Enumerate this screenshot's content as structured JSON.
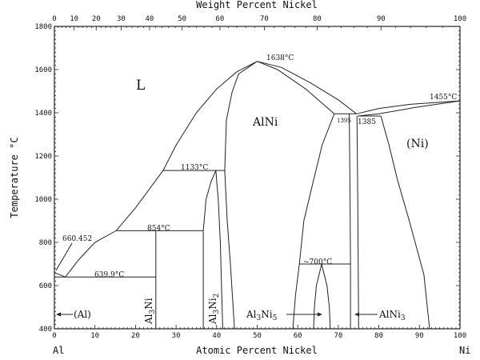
{
  "chart_data": {
    "type": "phase-diagram",
    "system": [
      "Al",
      "Ni"
    ],
    "xlabel": "Atomic Percent Nickel",
    "x2label": "Weight Percent Nickel",
    "ylabel": "Temperature °C",
    "xlim": [
      0,
      100
    ],
    "ylim": [
      400,
      1800
    ],
    "x_ticks": [
      0,
      10,
      20,
      30,
      40,
      50,
      60,
      70,
      80,
      90,
      100
    ],
    "x2_ticks": [
      0,
      10,
      20,
      30,
      40,
      50,
      60,
      70,
      80,
      90,
      100
    ],
    "y_ticks": [
      400,
      600,
      800,
      1000,
      1200,
      1400,
      1600,
      1800
    ],
    "left_element": "Al",
    "right_element": "Ni",
    "boundaries": [
      {
        "name": "liquidus-al-rich",
        "points": [
          [
            0,
            660
          ],
          [
            2.7,
            640
          ],
          [
            6,
            720
          ],
          [
            10,
            800
          ],
          [
            15.2,
            854
          ],
          [
            20,
            960
          ],
          [
            26.8,
            1133
          ],
          [
            30,
            1250
          ],
          [
            35,
            1400
          ],
          [
            40,
            1510
          ],
          [
            45,
            1590
          ],
          [
            50,
            1638
          ]
        ]
      },
      {
        "name": "liquidus-ni-rich-of-alni",
        "points": [
          [
            50,
            1638
          ],
          [
            56,
            1610
          ],
          [
            63,
            1540
          ],
          [
            70,
            1460
          ],
          [
            74.5,
            1395
          ]
        ]
      },
      {
        "name": "alni-solidus-right",
        "points": [
          [
            50,
            1638
          ],
          [
            55,
            1600
          ],
          [
            62,
            1510
          ],
          [
            69,
            1395
          ]
        ]
      },
      {
        "name": "alni-left-boundary",
        "points": [
          [
            50,
            1638
          ],
          [
            45.4,
            1580
          ],
          [
            43.8,
            1496
          ],
          [
            42.4,
            1367
          ],
          [
            42,
            1133
          ],
          [
            42.6,
            900
          ],
          [
            43.4,
            700
          ],
          [
            44.4,
            400
          ]
        ]
      },
      {
        "name": "alni-right-boundary",
        "points": [
          [
            69,
            1395
          ],
          [
            66,
            1250
          ],
          [
            63.9,
            1089
          ],
          [
            61.5,
            900
          ],
          [
            60.4,
            700
          ],
          [
            59.4,
            550
          ],
          [
            58.8,
            400
          ]
        ]
      },
      {
        "name": "peritectic-1395",
        "points": [
          [
            69,
            1395
          ],
          [
            74.5,
            1395
          ]
        ]
      },
      {
        "name": "ni-liquidus",
        "points": [
          [
            74.5,
            1395
          ],
          [
            80,
            1420
          ],
          [
            88,
            1440
          ],
          [
            100,
            1455
          ]
        ]
      },
      {
        "name": "ni-solidus",
        "points": [
          [
            74.8,
            1385
          ],
          [
            80,
            1395
          ],
          [
            89,
            1425
          ],
          [
            100,
            1455
          ]
        ]
      },
      {
        "name": "eutectic-1385",
        "points": [
          [
            74.8,
            1385
          ],
          [
            80.5,
            1385
          ]
        ]
      },
      {
        "name": "ni-solvus",
        "points": [
          [
            80.5,
            1385
          ],
          [
            82.5,
            1250
          ],
          [
            84.6,
            1089
          ],
          [
            87.5,
            900
          ],
          [
            91.1,
            650
          ],
          [
            92.5,
            400
          ]
        ]
      },
      {
        "name": "eutectic-639.9",
        "points": [
          [
            0,
            640
          ],
          [
            25,
            640
          ]
        ]
      },
      {
        "name": "al-solidus",
        "points": [
          [
            0,
            660
          ],
          [
            0,
            400
          ]
        ]
      },
      {
        "name": "peritectic-854",
        "points": [
          [
            15.2,
            854
          ],
          [
            36.7,
            854
          ]
        ]
      },
      {
        "name": "al3ni-line",
        "points": [
          [
            25,
            854
          ],
          [
            25,
            400
          ]
        ]
      },
      {
        "name": "peritectic-1133",
        "points": [
          [
            26.8,
            1133
          ],
          [
            42,
            1133
          ]
        ]
      },
      {
        "name": "al3ni2-left",
        "points": [
          [
            36.7,
            400
          ],
          [
            36.7,
            854
          ],
          [
            37.4,
            1000
          ],
          [
            38.6,
            1080
          ],
          [
            39.8,
            1133
          ]
        ]
      },
      {
        "name": "al3ni2-right",
        "points": [
          [
            39.8,
            1133
          ],
          [
            40.4,
            1000
          ],
          [
            40.9,
            800
          ],
          [
            41.5,
            400
          ]
        ]
      },
      {
        "name": "reaction-700",
        "points": [
          [
            60.4,
            700
          ],
          [
            73,
            700
          ]
        ]
      },
      {
        "name": "al3ni5-left",
        "points": [
          [
            65.9,
            700
          ],
          [
            64.6,
            600
          ],
          [
            64.1,
            500
          ],
          [
            63.9,
            400
          ]
        ]
      },
      {
        "name": "al3ni5-right",
        "points": [
          [
            65.9,
            700
          ],
          [
            67.2,
            600
          ],
          [
            67.8,
            500
          ],
          [
            68,
            400
          ]
        ]
      },
      {
        "name": "alni3-left",
        "points": [
          [
            72.7,
            1395
          ],
          [
            72.9,
            1000
          ],
          [
            73,
            700
          ],
          [
            73,
            400
          ]
        ]
      },
      {
        "name": "alni3-right",
        "points": [
          [
            74.6,
            1385
          ],
          [
            74.8,
            1000
          ],
          [
            75,
            400
          ]
        ]
      }
    ],
    "annotations": {
      "t_1638": "1638°C",
      "t_1133": "1133°C",
      "t_660": "660.452",
      "t_854": "854°C",
      "t_639": "639.9°C",
      "t_700": "~700°C",
      "t_1395": "1395",
      "t_1385": "1385",
      "t_1455": "1455°C"
    },
    "phases": {
      "liquid": "L",
      "alni": "AlNi",
      "ni": "(Ni)",
      "al": "(Al)",
      "al3ni": {
        "a": "Al",
        "s": "3",
        "b": "Ni"
      },
      "al3ni2": {
        "a": "Al",
        "s": "3",
        "b": "Ni",
        "s2": "2"
      },
      "al3ni5": {
        "a": "Al",
        "s": "3",
        "b": "Ni",
        "s2": "5"
      },
      "alni3": {
        "a": "AlNi",
        "s": "3"
      }
    },
    "line_color": "#222222"
  }
}
